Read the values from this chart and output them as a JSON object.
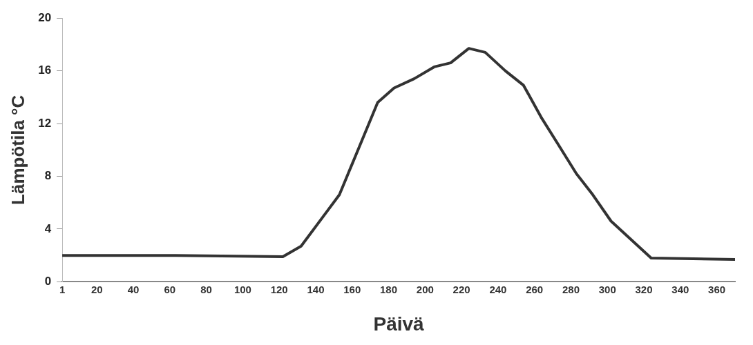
{
  "chart_data": {
    "type": "line",
    "xlabel": "Päivä",
    "ylabel": "Lämpötila °C",
    "xlim": [
      1,
      370
    ],
    "xticks": [
      1,
      20,
      40,
      60,
      80,
      100,
      120,
      140,
      160,
      180,
      200,
      220,
      240,
      260,
      280,
      300,
      320,
      340,
      360
    ],
    "ylim": [
      0,
      20
    ],
    "yticks": [
      0,
      4,
      8,
      12,
      16,
      20
    ],
    "grid": false,
    "legend": false,
    "marker": "none",
    "line_style": "solid",
    "series": [
      {
        "color": "#333333",
        "x": [
          1,
          60,
          122,
          132,
          146,
          153,
          174,
          183,
          194,
          205,
          214,
          224,
          233,
          244,
          254,
          264,
          274,
          283,
          292,
          302,
          324,
          370
        ],
        "values": [
          2.0,
          2.0,
          1.9,
          2.7,
          5.3,
          6.6,
          13.6,
          14.7,
          15.4,
          16.3,
          16.6,
          17.7,
          17.4,
          16.0,
          14.9,
          12.4,
          10.2,
          8.2,
          6.6,
          4.6,
          1.8,
          1.7
        ]
      }
    ]
  }
}
